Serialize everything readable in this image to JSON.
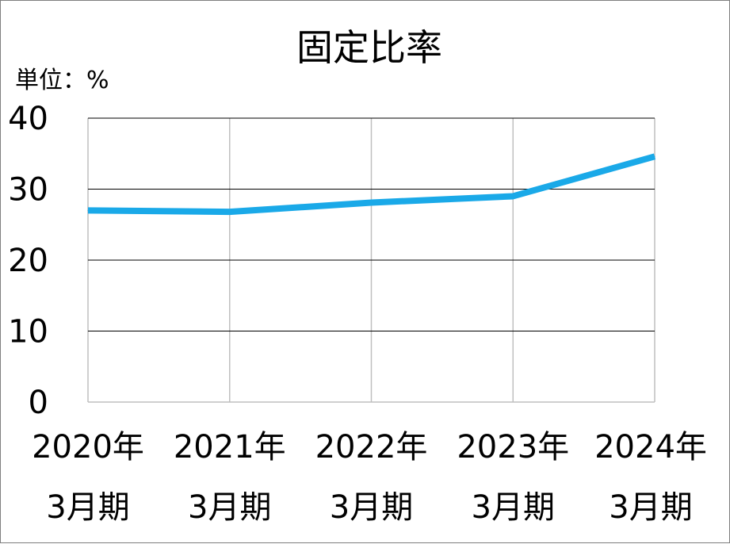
{
  "chart_data": {
    "type": "line",
    "title": "固定比率",
    "unit_label": "単位：%",
    "categories": [
      {
        "line1": "2020年",
        "line2": "3月期"
      },
      {
        "line1": "2021年",
        "line2": "3月期"
      },
      {
        "line1": "2022年",
        "line2": "3月期"
      },
      {
        "line1": "2023年",
        "line2": "3月期"
      },
      {
        "line1": "2024年",
        "line2": "3月期"
      }
    ],
    "values": [
      27.0,
      26.8,
      28.1,
      29.0,
      34.6
    ],
    "ylim": [
      0,
      40
    ],
    "yticks": [
      "0",
      "10",
      "20",
      "30",
      "40"
    ],
    "grid": {
      "horizontal": true,
      "vertical": true
    },
    "line_color": "#1aa9e8",
    "grid_color_horizontal": "#000000",
    "grid_color_vertical": "#bfbfbf",
    "legend": "none"
  }
}
